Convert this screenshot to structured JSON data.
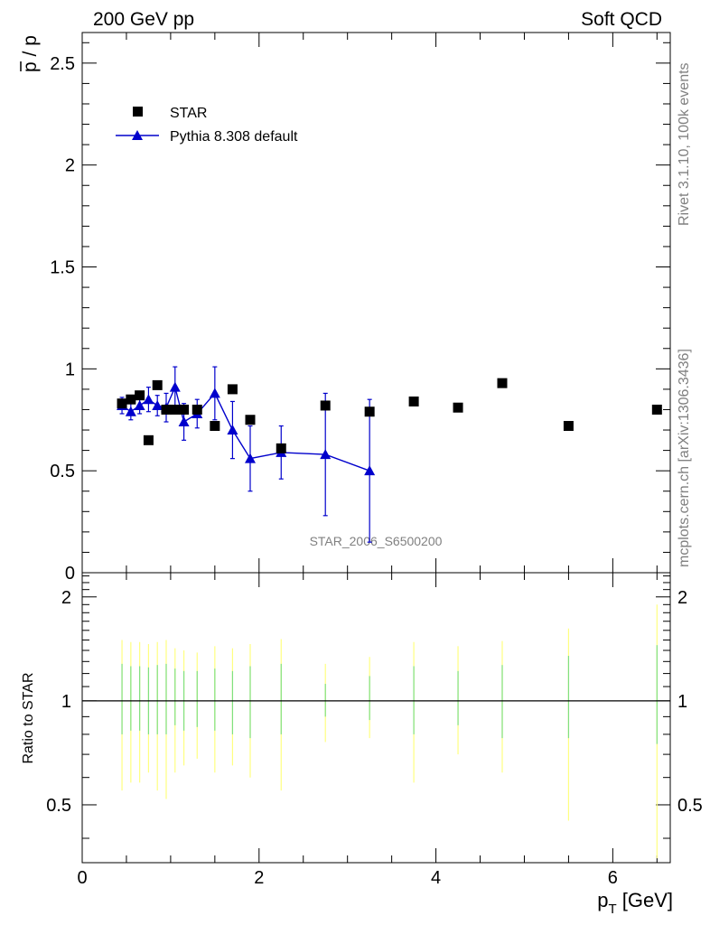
{
  "header": {
    "left": "200 GeV pp",
    "right": "Soft QCD"
  },
  "side_text": {
    "rivet": "Rivet 3.1.10,  100k events",
    "mcplots": "mcplots.cern.ch [arXiv:1306.3436]"
  },
  "analysis_label": "STAR_2006_S6500200",
  "colors": {
    "data": "#000000",
    "mc": "#0000cc",
    "band_outer": "#ffff80",
    "band_inner": "#80e080"
  },
  "chart_data": [
    {
      "type": "scatter",
      "panel": "main",
      "ylabel_base": "p",
      "ylabel_rest": " / p",
      "xlim": [
        0,
        6.65
      ],
      "ylim": [
        0,
        2.65
      ],
      "yticks": [
        0,
        0.5,
        1,
        1.5,
        2,
        2.5
      ],
      "ytick_labels": [
        "0",
        "0.5",
        "1",
        "1.5",
        "2",
        "2.5"
      ],
      "legend_position": "top-left",
      "series": [
        {
          "name": "STAR",
          "marker": "square",
          "x": [
            0.45,
            0.55,
            0.65,
            0.75,
            0.85,
            0.95,
            1.05,
            1.15,
            1.3,
            1.5,
            1.7,
            1.9,
            2.25,
            2.75,
            3.25,
            3.75,
            4.25,
            4.75,
            5.5,
            6.5
          ],
          "y": [
            0.83,
            0.85,
            0.87,
            0.65,
            0.92,
            0.8,
            0.8,
            0.8,
            0.8,
            0.72,
            0.9,
            0.75,
            0.61,
            0.82,
            0.79,
            0.84,
            0.81,
            0.93,
            0.72,
            0.8
          ]
        },
        {
          "name": "Pythia 8.308 default",
          "marker": "triangle",
          "x": [
            0.45,
            0.55,
            0.65,
            0.75,
            0.85,
            0.95,
            1.05,
            1.15,
            1.3,
            1.5,
            1.7,
            1.9,
            2.25,
            2.75,
            3.25
          ],
          "y": [
            0.82,
            0.79,
            0.82,
            0.85,
            0.82,
            0.81,
            0.91,
            0.74,
            0.78,
            0.88,
            0.7,
            0.56,
            0.59,
            0.58,
            0.5
          ],
          "yerr": [
            0.04,
            0.04,
            0.04,
            0.06,
            0.05,
            0.07,
            0.1,
            0.09,
            0.07,
            0.13,
            0.14,
            0.16,
            0.13,
            0.3,
            0.35
          ]
        }
      ]
    },
    {
      "type": "scatter",
      "panel": "ratio",
      "ylabel": "Ratio to STAR",
      "xlabel_base": "p",
      "xlabel_sub": "T",
      "xlabel_unit": " [GeV]",
      "xlim": [
        0,
        6.65
      ],
      "ylim": [
        0.34,
        2.35
      ],
      "xticks": [
        0,
        2,
        4,
        6
      ],
      "xtick_labels": [
        "0",
        "2",
        "4",
        "6"
      ],
      "yticks": [
        0.5,
        1,
        2
      ],
      "ytick_labels": [
        "0.5",
        "1",
        "2"
      ],
      "reference_line": 1,
      "bands": {
        "x": [
          0.45,
          0.55,
          0.65,
          0.75,
          0.85,
          0.95,
          1.05,
          1.15,
          1.3,
          1.5,
          1.7,
          1.9,
          2.25,
          2.75,
          3.25,
          3.75,
          4.25,
          4.75,
          5.5,
          6.5
        ],
        "outer_lo": [
          0.55,
          0.58,
          0.58,
          0.62,
          0.55,
          0.52,
          0.62,
          0.65,
          0.68,
          0.62,
          0.65,
          0.6,
          0.55,
          0.76,
          0.78,
          0.58,
          0.7,
          0.62,
          0.45,
          0.35
        ],
        "outer_hi": [
          1.5,
          1.48,
          1.48,
          1.46,
          1.48,
          1.5,
          1.42,
          1.4,
          1.38,
          1.44,
          1.42,
          1.46,
          1.51,
          1.28,
          1.34,
          1.48,
          1.44,
          1.49,
          1.62,
          1.9
        ],
        "inner_lo": [
          0.8,
          0.82,
          0.82,
          0.8,
          0.8,
          0.8,
          0.85,
          0.82,
          0.84,
          0.82,
          0.8,
          0.78,
          0.8,
          0.9,
          0.88,
          0.8,
          0.85,
          0.78,
          0.78,
          0.75
        ],
        "inner_hi": [
          1.28,
          1.26,
          1.26,
          1.25,
          1.27,
          1.28,
          1.24,
          1.22,
          1.22,
          1.24,
          1.22,
          1.26,
          1.28,
          1.12,
          1.18,
          1.26,
          1.22,
          1.27,
          1.35,
          1.45
        ]
      }
    }
  ]
}
